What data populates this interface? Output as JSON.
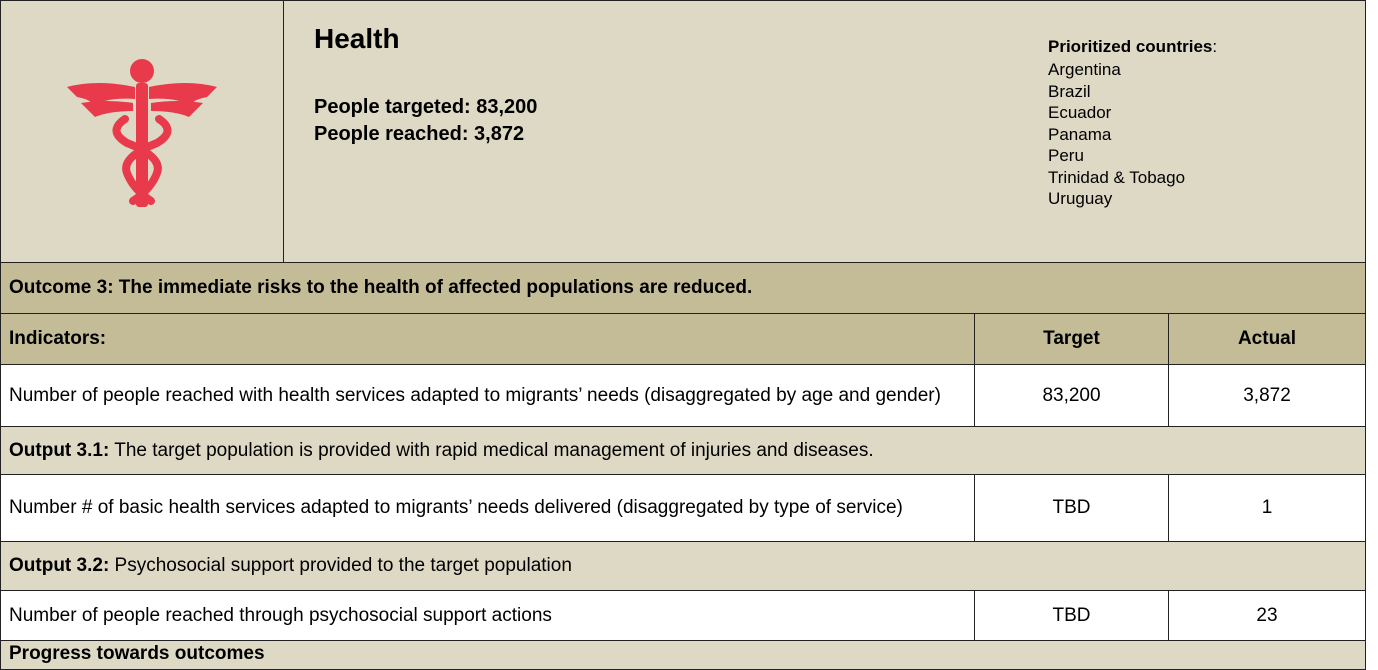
{
  "header": {
    "title": "Health",
    "targeted": "People targeted: 83,200",
    "reached": "People reached: 3,872",
    "prioritized_label": "Prioritized countries",
    "prioritized_colon": ":",
    "countries": [
      "Argentina",
      "Brazil",
      "Ecuador",
      "Panama",
      "Peru",
      "Trinidad & Tobago",
      "Uruguay"
    ]
  },
  "table": {
    "outcome": "Outcome 3: The immediate risks to the health of affected populations are reduced.",
    "columns": [
      "Indicators:",
      "Target",
      "Actual"
    ],
    "rows": [
      [
        "Number of people reached with health services adapted to migrants’ needs (disaggregated by age and gender)",
        "83,200",
        "3,872"
      ],
      [
        "Number # of basic health services adapted to migrants’ needs delivered (disaggregated by type of service)",
        "TBD",
        "1"
      ],
      [
        "Number of people reached through psychosocial support actions",
        "TBD",
        "23"
      ]
    ],
    "outputs": [
      {
        "label": "Output 3.1:",
        "text": " The target population is provided with rapid medical management of injuries and diseases."
      },
      {
        "label": "Output 3.2:",
        "text": " Psychosocial support provided to the target population"
      }
    ],
    "footer": "Progress towards outcomes"
  }
}
